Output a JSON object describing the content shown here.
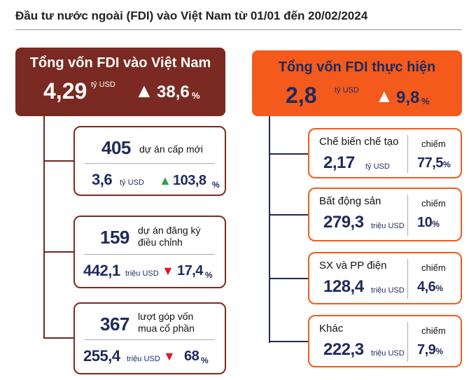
{
  "title": "Đầu tư nước ngoài (FDI) vào Việt Nam từ 01/01 đến 20/02/2024",
  "left": {
    "header": {
      "label": "Tổng vốn FDI vào Việt Nam",
      "value": "4,29",
      "unit": "tỷ USD",
      "trend": "▲",
      "change": "38,6",
      "change_unit": "%"
    },
    "items": [
      {
        "count": "405",
        "desc": [
          "dự án cấp mới"
        ],
        "value": "3,6",
        "unit": "tỷ USD",
        "trend": "▲",
        "change": "103,8",
        "change_unit": "%"
      },
      {
        "count": "159",
        "desc": [
          "dự án đăng ký",
          "điều chỉnh"
        ],
        "value": "442,1",
        "unit": "triệu USD",
        "trend": "▼",
        "change": "17,4",
        "change_unit": "%"
      },
      {
        "count": "367",
        "desc": [
          "lượt góp vốn",
          "mua cổ phần"
        ],
        "value": "255,4",
        "unit": "triệu USD",
        "trend": "▼",
        "change": "68",
        "change_unit": "%"
      }
    ]
  },
  "right": {
    "header": {
      "label": "Tổng vốn FDI thực hiện",
      "value": "2,8",
      "unit": "tỷ USD",
      "trend": "▲",
      "change": "9,8",
      "change_unit": "%"
    },
    "items": [
      {
        "name": "Chế biến chế tạo",
        "value": "2,17",
        "unit": "tỷ USD",
        "share_label": "chiếm",
        "share": "77,5",
        "share_unit": "%"
      },
      {
        "name": "Bất động sản",
        "value": "279,3",
        "unit": "triệu USD",
        "share_label": "chiếm",
        "share": "10",
        "share_unit": "%"
      },
      {
        "name": "SX và PP điện",
        "value": "128,4",
        "unit": "triệu USD",
        "share_label": "chiếm",
        "share": "4,6",
        "share_unit": "%"
      },
      {
        "name": "Khác",
        "value": "222,3",
        "unit": "triệu USD",
        "share_label": "chiếm",
        "share": "7,9",
        "share_unit": "%"
      }
    ]
  }
}
